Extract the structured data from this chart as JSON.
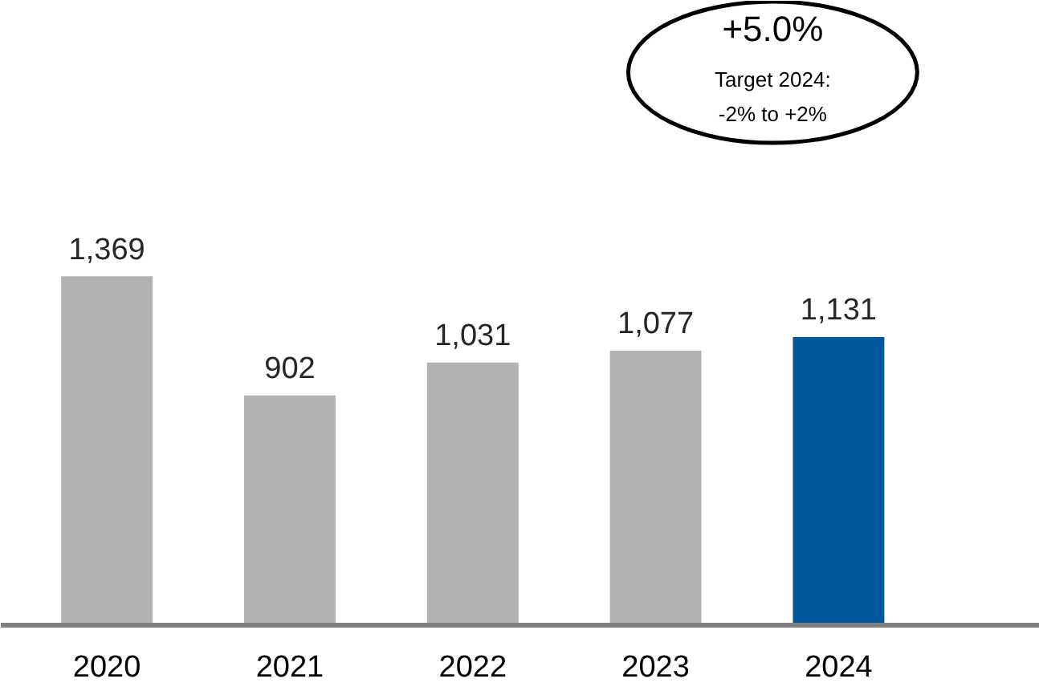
{
  "chart_data": {
    "type": "bar",
    "categories": [
      "2020",
      "2021",
      "2022",
      "2023",
      "2024"
    ],
    "values": [
      1369,
      902,
      1031,
      1077,
      1131
    ],
    "colors": [
      "#b2b2b2",
      "#b2b2b2",
      "#b2b2b2",
      "#b2b2b2",
      "#00589c"
    ],
    "value_labels": [
      "1,369",
      "902",
      "1,031",
      "1,077",
      "1,131"
    ],
    "grid": false,
    "annotations": [
      "+5.0%",
      "Target 2024:",
      "-2% to +2%"
    ]
  }
}
